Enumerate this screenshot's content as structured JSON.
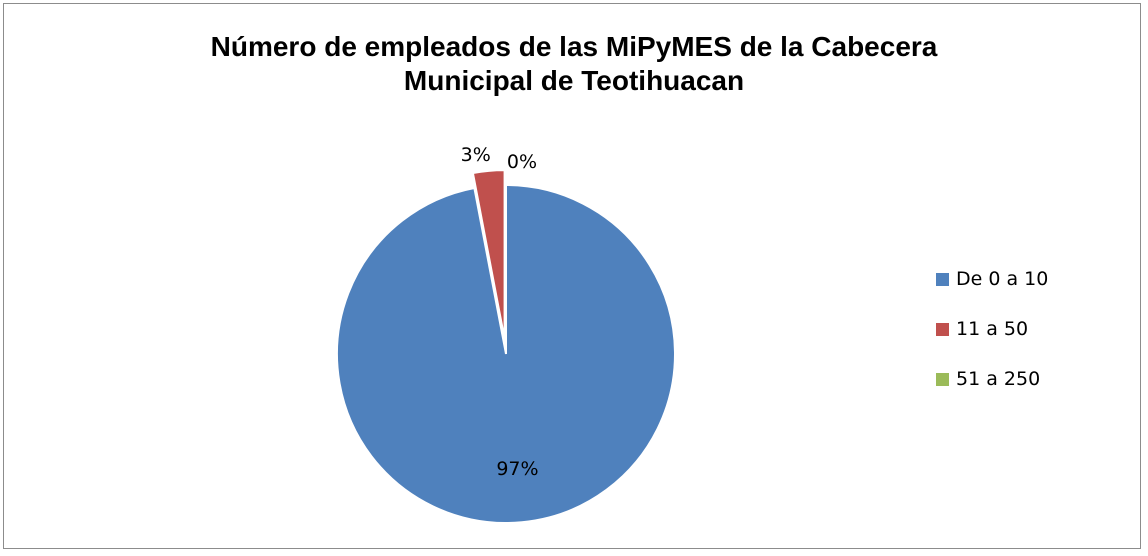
{
  "chart_data": {
    "type": "pie",
    "title_lines": [
      "Número de empleados de las MiPyMES de la Cabecera",
      "Municipal de Teotihuacan"
    ],
    "categories": [
      "De 0 a 10",
      "11 a 50",
      "51 a 250"
    ],
    "values": [
      97,
      3,
      0
    ],
    "data_labels": [
      "97%",
      "3%",
      "0%"
    ],
    "colors": [
      "#4F81BD",
      "#C0504D",
      "#9BBB59"
    ],
    "exploded_slice": "11 a 50",
    "legend_position": "right"
  }
}
